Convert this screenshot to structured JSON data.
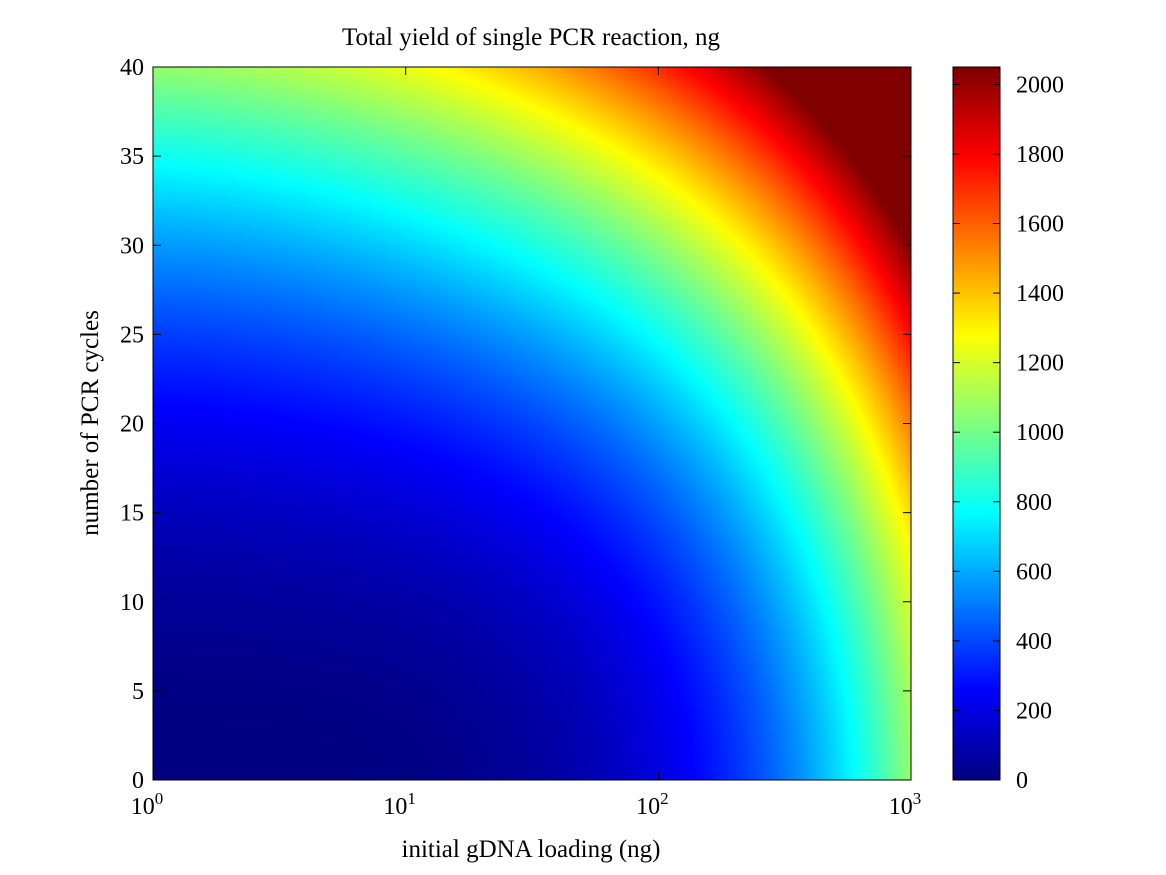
{
  "chart_data": {
    "type": "heatmap",
    "title": "Total yield of single PCR reaction, ng",
    "xlabel": "initial gDNA loading (ng)",
    "ylabel": "number of PCR cycles",
    "x_scale": "log",
    "xlim": [
      1,
      1000
    ],
    "ylim": [
      0,
      40
    ],
    "x_ticks": [
      {
        "value": 1,
        "base": "10",
        "exp": "0"
      },
      {
        "value": 10,
        "base": "10",
        "exp": "1"
      },
      {
        "value": 100,
        "base": "10",
        "exp": "2"
      },
      {
        "value": 1000,
        "base": "10",
        "exp": "3"
      }
    ],
    "y_ticks": [
      "0",
      "5",
      "10",
      "15",
      "20",
      "25",
      "30",
      "35",
      "40"
    ],
    "colormap": "jet",
    "colorbar": {
      "clim": [
        0,
        2050
      ],
      "ticks": [
        "0",
        "200",
        "400",
        "600",
        "800",
        "1000",
        "1200",
        "1400",
        "1600",
        "1800",
        "2000"
      ]
    },
    "grid": false,
    "sample_values": [
      {
        "x": 1,
        "y": 0,
        "value": 0
      },
      {
        "x": 1,
        "y": 40,
        "value": 1050
      },
      {
        "x": 1000,
        "y": 0,
        "value": 1050
      },
      {
        "x": 1000,
        "y": 40,
        "value": 2050
      },
      {
        "x": 100,
        "y": 20,
        "value": 700
      },
      {
        "x": 10,
        "y": 25,
        "value": 350
      }
    ]
  }
}
